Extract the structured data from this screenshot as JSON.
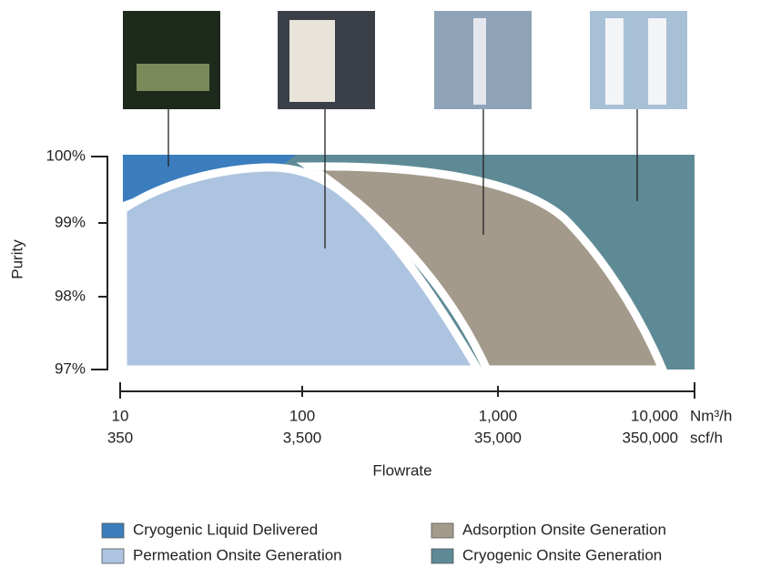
{
  "y_axis": {
    "label": "Purity",
    "ticks": [
      "100%",
      "99%",
      "98%",
      "97%"
    ]
  },
  "x_axis": {
    "label": "Flowrate",
    "units": [
      "Nm³/h",
      "scf/h"
    ],
    "ticks": [
      {
        "nm3h": "10",
        "scfh": "350"
      },
      {
        "nm3h": "100",
        "scfh": "3,500"
      },
      {
        "nm3h": "1,000",
        "scfh": "35,000"
      },
      {
        "nm3h": "10,000",
        "scfh": "350,000"
      }
    ]
  },
  "legend": [
    {
      "label": "Cryogenic Liquid Delivered",
      "color": "#3b7dbd"
    },
    {
      "label": "Permeation Onsite Generation",
      "color": "#adc4e1"
    },
    {
      "label": "Adsorption Onsite Generation",
      "color": "#a39a8c"
    },
    {
      "label": "Cryogenic Onsite Generation",
      "color": "#5e8a95"
    }
  ]
}
